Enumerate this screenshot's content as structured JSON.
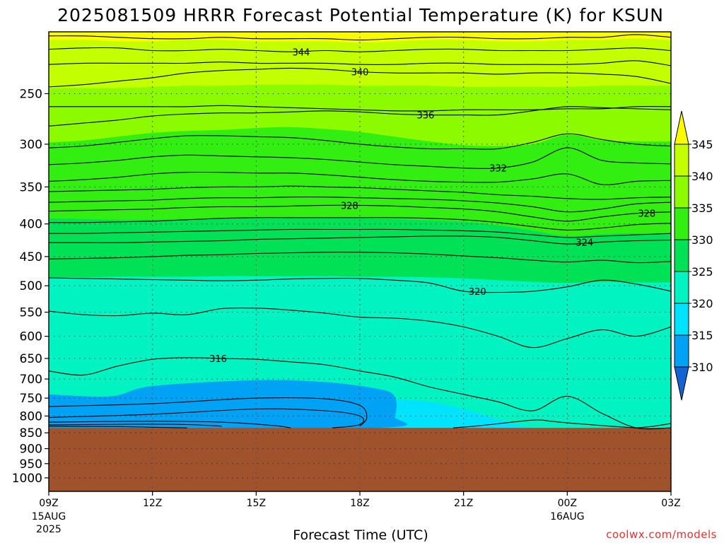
{
  "title": "2025081509 HRRR Forecast Potential Temperature (K) for KSUN",
  "credit": "coolwx.com/models",
  "chart_data": {
    "type": "heatmap",
    "title": "2025081509 HRRR Forecast Potential Temperature (K) for KSUN",
    "xlabel": "Forecast Time (UTC)",
    "ylabel": "",
    "x_ticks": [
      {
        "hour": 0,
        "label": "09Z",
        "sub": [
          "15AUG",
          "2025"
        ]
      },
      {
        "hour": 3,
        "label": "12Z",
        "sub": []
      },
      {
        "hour": 6,
        "label": "15Z",
        "sub": []
      },
      {
        "hour": 9,
        "label": "18Z",
        "sub": []
      },
      {
        "hour": 12,
        "label": "21Z",
        "sub": []
      },
      {
        "hour": 15,
        "label": "00Z",
        "sub": [
          "16AUG"
        ]
      },
      {
        "hour": 18,
        "label": "03Z",
        "sub": []
      }
    ],
    "x_range_hours": [
      0,
      18
    ],
    "y_ticks_hPa": [
      250,
      300,
      350,
      400,
      450,
      500,
      550,
      600,
      650,
      700,
      750,
      800,
      850,
      900,
      950,
      1000
    ],
    "y_range_hPa": [
      200,
      1050
    ],
    "y_scale": "log-pressure (inverted)",
    "grid": true,
    "surface_pressure_hPa": 835,
    "surface_color": "#a0522d",
    "colorbar": {
      "levels": [
        310,
        315,
        320,
        325,
        330,
        335,
        340,
        345
      ],
      "labels": [
        "310",
        "315",
        "320",
        "325",
        "330",
        "335",
        "340",
        "345"
      ],
      "colors": [
        "#1463d3",
        "#00a2f5",
        "#00e3ff",
        "#00f3c1",
        "#00e156",
        "#32ef11",
        "#8dfb00",
        "#c3ff00",
        "#fbfb00"
      ],
      "placement": "right"
    },
    "fill_bands": [
      {
        "range": [
          345,
          350
        ],
        "color": "#fbfb00"
      },
      {
        "range": [
          340,
          345
        ],
        "color": "#c3ff00"
      },
      {
        "range": [
          335,
          340
        ],
        "color": "#8dfb00"
      },
      {
        "range": [
          330,
          335
        ],
        "color": "#32ef11"
      },
      {
        "range": [
          325,
          330
        ],
        "color": "#00e156"
      },
      {
        "range": [
          320,
          325
        ],
        "color": "#00f3c1"
      },
      {
        "range": [
          315,
          320
        ],
        "color": "#00e3ff"
      },
      {
        "range": [
          310,
          315
        ],
        "color": "#00a2f5"
      }
    ],
    "band_boundaries": [
      {
        "level": 345,
        "pressures_hPa": [
          206,
          206,
          207,
          207,
          206,
          206,
          207,
          207,
          207,
          208,
          207,
          206,
          206,
          207,
          207,
          206,
          206,
          205,
          206
        ]
      },
      {
        "level": 340,
        "pressures_hPa": [
          245,
          245,
          245,
          244,
          243,
          243,
          242,
          242,
          242,
          243,
          243,
          243,
          244,
          244,
          244,
          244,
          243,
          243,
          243
        ]
      },
      {
        "level": 335,
        "pressures_hPa": [
          298,
          296,
          292,
          288,
          286,
          285,
          283,
          282,
          284,
          287,
          292,
          297,
          301,
          302,
          300,
          290,
          296,
          297,
          297
        ]
      },
      {
        "level": 330,
        "pressures_hPa": [
          392,
          393,
          394,
          394,
          393,
          392,
          392,
          391,
          391,
          392,
          393,
          395,
          397,
          402,
          410,
          418,
          415,
          414,
          414
        ]
      },
      {
        "level": 325,
        "pressures_hPa": [
          485,
          485,
          484,
          484,
          484,
          483,
          483,
          483,
          483,
          484,
          484,
          485,
          487,
          490,
          493,
          495,
          493,
          494,
          494
        ]
      },
      {
        "level": 320,
        "pressures_hPa": [
          750,
          748,
          745,
          743,
          740,
          738,
          738,
          739,
          742,
          748,
          752,
          760,
          780,
          810,
          835,
          835,
          835,
          835,
          835
        ]
      }
    ],
    "contours": [
      {
        "level": 346,
        "label": "",
        "pressures_hPa": [
          203,
          203,
          204,
          205,
          205,
          204,
          205,
          205,
          205,
          206,
          205,
          204,
          204,
          205,
          205,
          204,
          204,
          202,
          204
        ]
      },
      {
        "level": 344,
        "label": "344",
        "pressures_hPa": [
          213,
          212,
          212,
          214,
          214,
          213,
          214,
          215,
          214,
          215,
          214,
          213,
          213,
          214,
          214,
          214,
          213,
          212,
          214
        ]
      },
      {
        "level": 342,
        "label": "",
        "pressures_hPa": [
          225,
          224,
          224,
          224,
          224,
          223,
          224,
          224,
          224,
          225,
          225,
          224,
          224,
          225,
          225,
          225,
          224,
          222,
          226
        ]
      },
      {
        "level": 340,
        "label": "340",
        "pressures_hPa": [
          244,
          242,
          239,
          236,
          232,
          230,
          229,
          228,
          229,
          231,
          232,
          232,
          232,
          233,
          232,
          232,
          233,
          235,
          241
        ]
      },
      {
        "level": 338,
        "label": "",
        "pressures_hPa": [
          262,
          262,
          262,
          262,
          262,
          261,
          262,
          263,
          264,
          265,
          266,
          266,
          265,
          265,
          265,
          264,
          264,
          262,
          262
        ]
      },
      {
        "level": 336,
        "label": "336",
        "pressures_hPa": [
          281,
          278,
          275,
          271,
          269,
          268,
          268,
          267,
          266,
          267,
          269,
          270,
          270,
          270,
          266,
          262,
          263,
          264,
          265
        ]
      },
      {
        "level": 334,
        "label": "",
        "pressures_hPa": [
          304,
          302,
          298,
          294,
          291,
          291,
          292,
          293,
          296,
          300,
          303,
          305,
          305,
          305,
          298,
          289,
          295,
          300,
          302
        ]
      },
      {
        "level": 332,
        "label": "332",
        "pressures_hPa": [
          323,
          321,
          318,
          314,
          312,
          313,
          314,
          315,
          317,
          320,
          323,
          325,
          327,
          327,
          320,
          304,
          318,
          321,
          322
        ]
      },
      {
        "level": 331,
        "label": "",
        "pressures_hPa": [
          343,
          341,
          338,
          334,
          332,
          332,
          333,
          333,
          335,
          338,
          341,
          343,
          344,
          344,
          340,
          334,
          347,
          343,
          342
        ]
      },
      {
        "level": 330,
        "label": "",
        "pressures_hPa": [
          356,
          355,
          354,
          353,
          351,
          350,
          350,
          349,
          350,
          351,
          353,
          355,
          357,
          360,
          362,
          365,
          366,
          364,
          363
        ]
      },
      {
        "level": 329,
        "label": "",
        "pressures_hPa": [
          370,
          369,
          368,
          367,
          365,
          364,
          364,
          363,
          363,
          364,
          365,
          366,
          368,
          371,
          376,
          383,
          379,
          372,
          370
        ]
      },
      {
        "level": 328,
        "label": "328",
        "pressures_hPa": [
          382,
          381,
          380,
          379,
          377,
          376,
          376,
          375,
          374,
          374,
          375,
          377,
          379,
          383,
          390,
          396,
          390,
          385,
          383
        ]
      },
      {
        "level": 327,
        "label": "",
        "pressures_hPa": [
          398,
          398,
          397,
          396,
          394,
          392,
          391,
          391,
          391,
          391,
          391,
          392,
          394,
          398,
          404,
          409,
          406,
          401,
          399
        ]
      },
      {
        "level": 326,
        "label": "",
        "pressures_hPa": [
          414,
          414,
          413,
          412,
          411,
          410,
          409,
          408,
          408,
          408,
          408,
          409,
          410,
          412,
          416,
          420,
          418,
          416,
          414
        ]
      },
      {
        "level": 324,
        "label": "324",
        "pressures_hPa": [
          428,
          428,
          428,
          427,
          426,
          425,
          423,
          422,
          421,
          420,
          419,
          418,
          418,
          420,
          425,
          430,
          427,
          425,
          424
        ]
      },
      {
        "level": 322,
        "label": "",
        "pressures_hPa": [
          454,
          453,
          452,
          450,
          448,
          447,
          445,
          444,
          443,
          443,
          444,
          446,
          449,
          452,
          456,
          459,
          456,
          460,
          458
        ]
      },
      {
        "level": 320,
        "label": "320",
        "pressures_hPa": [
          486,
          487,
          488,
          489,
          490,
          491,
          490,
          488,
          487,
          487,
          490,
          495,
          510,
          512,
          510,
          502,
          490,
          497,
          510
        ]
      },
      {
        "level": 318,
        "label": "",
        "pressures_hPa": [
          548,
          555,
          557,
          552,
          555,
          543,
          542,
          546,
          552,
          560,
          562,
          568,
          580,
          600,
          625,
          605,
          586,
          600,
          580
        ]
      },
      {
        "level": 316,
        "label": "316",
        "pressures_hPa": [
          680,
          690,
          668,
          652,
          648,
          650,
          652,
          658,
          665,
          680,
          695,
          720,
          740,
          760,
          785,
          745,
          792,
          835,
          835
        ]
      }
    ],
    "cold_pools": [
      {
        "label": "",
        "points_hour_hPa": [
          [
            0,
            773
          ],
          [
            3,
            765
          ],
          [
            6,
            750
          ],
          [
            8,
            752
          ],
          [
            9,
            770
          ],
          [
            9.2,
            805
          ],
          [
            9,
            830
          ]
        ]
      },
      {
        "label": "",
        "points_hour_hPa": [
          [
            0,
            818
          ],
          [
            3,
            815
          ],
          [
            5,
            818
          ],
          [
            6.5,
            828
          ],
          [
            7,
            835
          ]
        ]
      },
      {
        "label": "",
        "points_hour_hPa": [
          [
            0,
            804
          ],
          [
            3,
            795
          ],
          [
            6,
            780
          ],
          [
            8,
            785
          ],
          [
            9,
            800
          ],
          [
            9,
            825
          ],
          [
            8.2,
            835
          ]
        ]
      },
      {
        "label": "",
        "points_hour_hPa": [
          [
            0,
            826
          ],
          [
            2.5,
            824
          ],
          [
            4,
            825
          ],
          [
            5,
            830
          ]
        ]
      },
      {
        "label": "",
        "points_hour_hPa": [
          [
            0,
            830
          ],
          [
            2,
            831
          ],
          [
            3,
            833
          ],
          [
            4,
            835
          ]
        ]
      },
      {
        "label": "",
        "points_hour_hPa": [
          [
            11.7,
            835
          ],
          [
            12.5,
            828
          ],
          [
            14,
            812
          ],
          [
            14.5,
            815
          ],
          [
            15,
            820
          ],
          [
            16,
            828
          ],
          [
            17,
            835
          ]
        ]
      },
      {
        "label": "",
        "points_hour_hPa": [
          [
            17,
            835
          ],
          [
            17.5,
            830
          ],
          [
            18,
            822
          ]
        ]
      }
    ],
    "cold_fill_polygon_hour_hPa": [
      [
        0,
        740
      ],
      [
        1.8,
        745
      ],
      [
        3,
        718
      ],
      [
        6,
        703
      ],
      [
        8,
        708
      ],
      [
        9.5,
        725
      ],
      [
        10,
        745
      ],
      [
        10,
        800
      ],
      [
        9.5,
        835
      ],
      [
        0,
        835
      ]
    ]
  }
}
